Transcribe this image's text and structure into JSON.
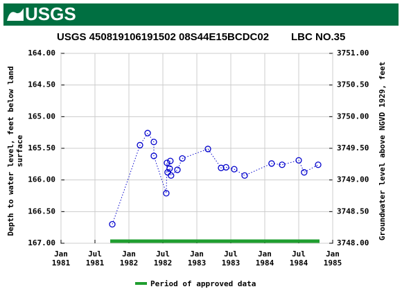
{
  "header": {
    "logo_text": "USGS"
  },
  "chart_data": {
    "type": "line",
    "title": "USGS 450819106191502 08S44E15BCDC02",
    "title_right": "LBC NO.35",
    "y_label": [
      "Depth to water level, feet below land",
      "surface"
    ],
    "y2_label": "Groundwater level above NGVD 1929, feet",
    "x": [
      1981.755,
      1982.163,
      1982.276,
      1982.367,
      1982.367,
      1982.55,
      1982.56,
      1982.57,
      1982.6,
      1982.61,
      1982.62,
      1982.714,
      1982.786,
      1983.163,
      1983.357,
      1983.43,
      1983.55,
      1983.704,
      1984.1,
      1984.255,
      1984.5,
      1984.58,
      1984.786
    ],
    "series": [
      {
        "color": "#0000cc",
        "values": [
          166.7,
          165.45,
          165.26,
          165.4,
          165.62,
          166.21,
          165.73,
          165.88,
          165.82,
          165.7,
          165.93,
          165.84,
          165.66,
          165.51,
          165.81,
          165.8,
          165.83,
          165.93,
          165.74,
          165.76,
          165.69,
          165.88,
          165.76
        ]
      }
    ],
    "xlim": [
      1981,
      1985
    ],
    "xticks": [
      {
        "value": 1981,
        "label": [
          "Jan",
          "1981"
        ]
      },
      {
        "value": 1981.5,
        "label": [
          "Jul",
          "1981"
        ]
      },
      {
        "value": 1982,
        "label": [
          "Jan",
          "1982"
        ]
      },
      {
        "value": 1982.5,
        "label": [
          "Jul",
          "1982"
        ]
      },
      {
        "value": 1983,
        "label": [
          "Jan",
          "1983"
        ]
      },
      {
        "value": 1983.5,
        "label": [
          "Jul",
          "1983"
        ]
      },
      {
        "value": 1984,
        "label": [
          "Jan",
          "1984"
        ]
      },
      {
        "value": 1984.5,
        "label": [
          "Jul",
          "1984"
        ]
      },
      {
        "value": 1985,
        "label": [
          "Jan",
          "1985"
        ]
      }
    ],
    "ylim": [
      164,
      167
    ],
    "y_inverted": true,
    "yticks": [
      {
        "value": 164,
        "label": "164.00"
      },
      {
        "value": 164.5,
        "label": "164.50"
      },
      {
        "value": 165,
        "label": "165.00"
      },
      {
        "value": 165.5,
        "label": "165.50"
      },
      {
        "value": 166,
        "label": "166.00"
      },
      {
        "value": 166.5,
        "label": "166.50"
      },
      {
        "value": 167,
        "label": "167.00"
      }
    ],
    "y2lim": [
      3751,
      3748
    ],
    "y2ticks": [
      {
        "value": 3751,
        "label": "3751.00"
      },
      {
        "value": 3750.5,
        "label": "3750.50"
      },
      {
        "value": 3750,
        "label": "3750.00"
      },
      {
        "value": 3749.5,
        "label": "3749.50"
      },
      {
        "value": 3749,
        "label": "3749.00"
      },
      {
        "value": 3748.5,
        "label": "3748.50"
      },
      {
        "value": 3748,
        "label": "3748.00"
      }
    ],
    "grid": true,
    "approved_period": {
      "name": "Period of approved data",
      "color": "#1f9e2f",
      "start": 1981.725,
      "end": 1984.806
    }
  }
}
